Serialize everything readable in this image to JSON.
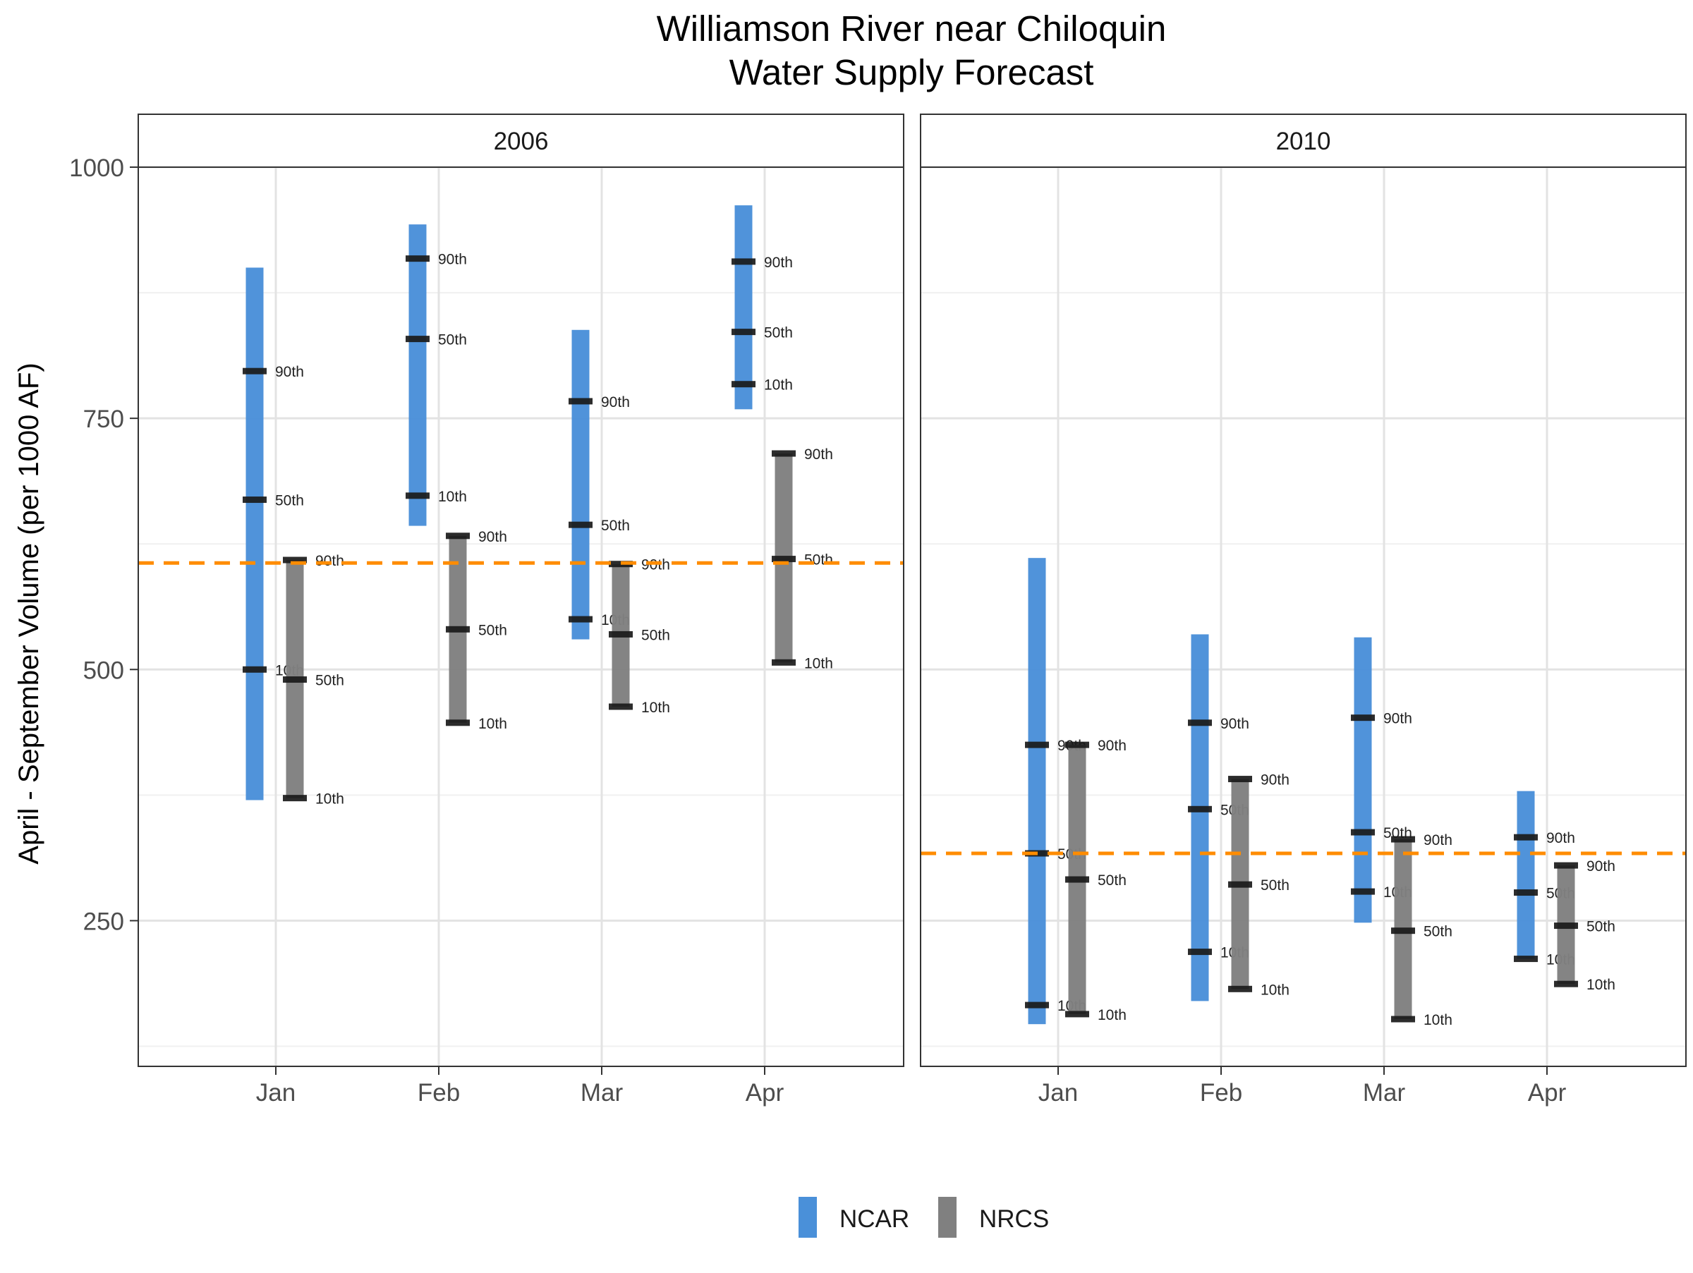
{
  "chart_data": {
    "type": "range_bar",
    "title": "Williamson River near Chiloquin",
    "subtitle": "Water Supply Forecast",
    "ylabel": "April - September Volume (per 1000 AF)",
    "xlabel": "",
    "ylim": [
      105,
      1000
    ],
    "yticks": [
      250,
      500,
      750,
      1000
    ],
    "y_minor_grid": [
      125,
      375,
      625,
      875
    ],
    "categories": [
      "Jan",
      "Feb",
      "Mar",
      "Apr"
    ],
    "grid": true,
    "legend": {
      "position": "bottom",
      "entries": [
        {
          "name": "NCAR",
          "color": "#4A90D9"
        },
        {
          "name": "NRCS",
          "color": "#808080"
        }
      ]
    },
    "marker_color": "#1a1a1a",
    "reference_color": "#FF8C00",
    "panels": [
      {
        "label": "2006",
        "reference_line": 606,
        "series": [
          {
            "name": "NCAR",
            "color": "#4A90D9",
            "values": [
              {
                "category": "Jan",
                "low": 370,
                "high": 900,
                "p10": 500,
                "p50": 669,
                "p90": 797
              },
              {
                "category": "Feb",
                "low": 643,
                "high": 943,
                "p10": 673,
                "p50": 829,
                "p90": 909
              },
              {
                "category": "Mar",
                "low": 530,
                "high": 838,
                "p10": 550,
                "p50": 644,
                "p90": 767
              },
              {
                "category": "Apr",
                "low": 759,
                "high": 962,
                "p10": 784,
                "p50": 836,
                "p90": 906
              }
            ]
          },
          {
            "name": "NRCS",
            "color": "#808080",
            "values": [
              {
                "category": "Jan",
                "low": 372,
                "high": 609,
                "p10": 372,
                "p50": 490,
                "p90": 609
              },
              {
                "category": "Feb",
                "low": 447,
                "high": 633,
                "p10": 447,
                "p50": 540,
                "p90": 633
              },
              {
                "category": "Mar",
                "low": 463,
                "high": 605,
                "p10": 463,
                "p50": 535,
                "p90": 605
              },
              {
                "category": "Apr",
                "low": 507,
                "high": 715,
                "p10": 507,
                "p50": 610,
                "p90": 715
              }
            ]
          }
        ]
      },
      {
        "label": "2010",
        "reference_line": 317,
        "series": [
          {
            "name": "NCAR",
            "color": "#4A90D9",
            "values": [
              {
                "category": "Jan",
                "low": 147,
                "high": 611,
                "p10": 166,
                "p50": 317,
                "p90": 425
              },
              {
                "category": "Feb",
                "low": 170,
                "high": 535,
                "p10": 219,
                "p50": 361,
                "p90": 447
              },
              {
                "category": "Mar",
                "low": 248,
                "high": 532,
                "p10": 279,
                "p50": 338,
                "p90": 452
              },
              {
                "category": "Apr",
                "low": 212,
                "high": 379,
                "p10": 212,
                "p50": 278,
                "p90": 333
              }
            ]
          },
          {
            "name": "NRCS",
            "color": "#808080",
            "values": [
              {
                "category": "Jan",
                "low": 157,
                "high": 425,
                "p10": 157,
                "p50": 291,
                "p90": 425
              },
              {
                "category": "Feb",
                "low": 182,
                "high": 391,
                "p10": 182,
                "p50": 286,
                "p90": 391
              },
              {
                "category": "Mar",
                "low": 152,
                "high": 331,
                "p10": 152,
                "p50": 240,
                "p90": 331
              },
              {
                "category": "Apr",
                "low": 187,
                "high": 305,
                "p10": 187,
                "p50": 245,
                "p90": 305
              }
            ]
          }
        ]
      }
    ],
    "percentile_labels": {
      "p10": "10th",
      "p50": "50th",
      "p90": "90th"
    }
  }
}
